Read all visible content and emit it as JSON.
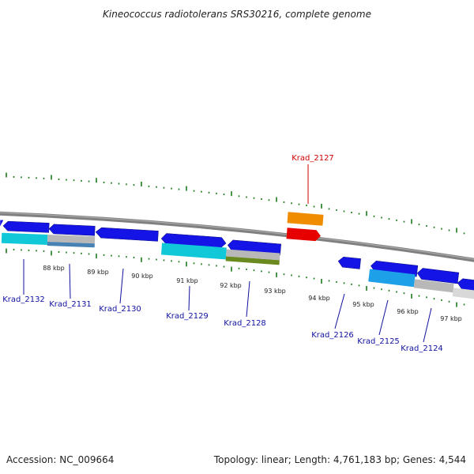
{
  "title": "Kineococcus radiotolerans SRS30216, complete genome",
  "footer": {
    "accession": "Accession: NC_009664",
    "summary": "Topology: linear; Length: 4,761,183 bp; Genes: 4,544"
  },
  "colors": {
    "cds_blue": "#1414e6",
    "rna_cyan": "#10c8d8",
    "rna_light_blue": "#1ea0e8",
    "gray_bar": "#b8b8b8",
    "olive": "#6a8a20",
    "steel_blue": "#4682b4",
    "orange": "#f08c00",
    "red": "#e60000",
    "tick_green": "#1a7a1a",
    "backbone": "#808080",
    "highlight_label": "#d00000",
    "label_blue": "#1010a0"
  },
  "kbp_ticks": [
    "88 kbp",
    "89 kbp",
    "90 kbp",
    "91 kbp",
    "92 kbp",
    "93 kbp",
    "94 kbp",
    "95 kbp",
    "96 kbp",
    "97 kbp"
  ],
  "gene_labels": [
    {
      "name": "Krad_2132",
      "highlight": false
    },
    {
      "name": "Krad_2131",
      "highlight": false
    },
    {
      "name": "Krad_2130",
      "highlight": false
    },
    {
      "name": "Krad_2129",
      "highlight": false
    },
    {
      "name": "Krad_2128",
      "highlight": false
    },
    {
      "name": "Krad_2127",
      "highlight": true
    },
    {
      "name": "Krad_2126",
      "highlight": false
    },
    {
      "name": "Krad_2125",
      "highlight": false
    },
    {
      "name": "Krad_2124",
      "highlight": false
    }
  ]
}
